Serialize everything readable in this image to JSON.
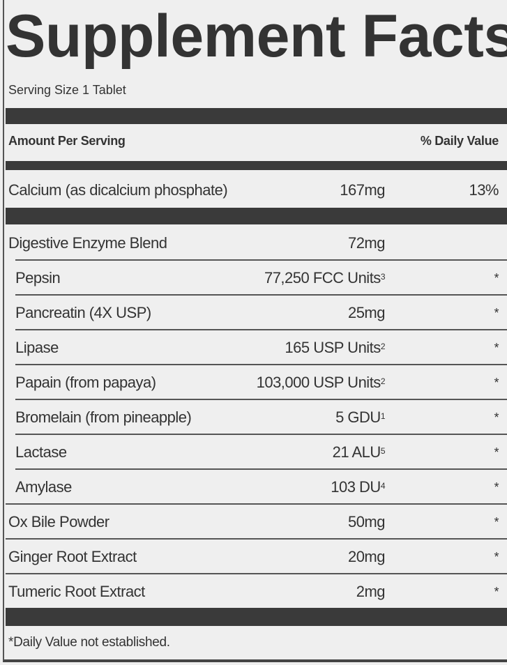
{
  "title": "Supplement Facts",
  "serving_size": "Serving Size 1 Tablet",
  "header": {
    "amount_per_serving": "Amount Per Serving",
    "daily_value": "% Daily Value"
  },
  "calcium": {
    "name": "Calcium (as dicalcium phosphate)",
    "amount": "167mg",
    "dv": "13%"
  },
  "ingredients": [
    {
      "name": "Digestive Enzyme Blend",
      "amount": "72mg",
      "sup": "",
      "dv": ""
    },
    {
      "name": "Pepsin",
      "amount": "77,250 FCC Units",
      "sup": "3",
      "dv": "*"
    },
    {
      "name": "Pancreatin (4X USP)",
      "amount": "25mg",
      "sup": "",
      "dv": "*"
    },
    {
      "name": "Lipase",
      "amount": "165 USP Units",
      "sup": "2",
      "dv": "*"
    },
    {
      "name": "Papain (from papaya)",
      "amount": "103,000 USP Units",
      "sup": "2",
      "dv": "*"
    },
    {
      "name": "Bromelain (from pineapple)",
      "amount": "5 GDU",
      "sup": "1",
      "dv": "*"
    },
    {
      "name": "Lactase",
      "amount": "21 ALU",
      "sup": "5",
      "dv": "*"
    },
    {
      "name": "Amylase",
      "amount": "103 DU",
      "sup": "4",
      "dv": "*"
    },
    {
      "name": "Ox Bile Powder",
      "amount": "50mg",
      "sup": "",
      "dv": "*"
    },
    {
      "name": "Ginger Root Extract",
      "amount": "20mg",
      "sup": "",
      "dv": "*"
    },
    {
      "name": "Tumeric Root Extract",
      "amount": "2mg",
      "sup": "",
      "dv": "*"
    }
  ],
  "footnote": "*Daily Value not established."
}
